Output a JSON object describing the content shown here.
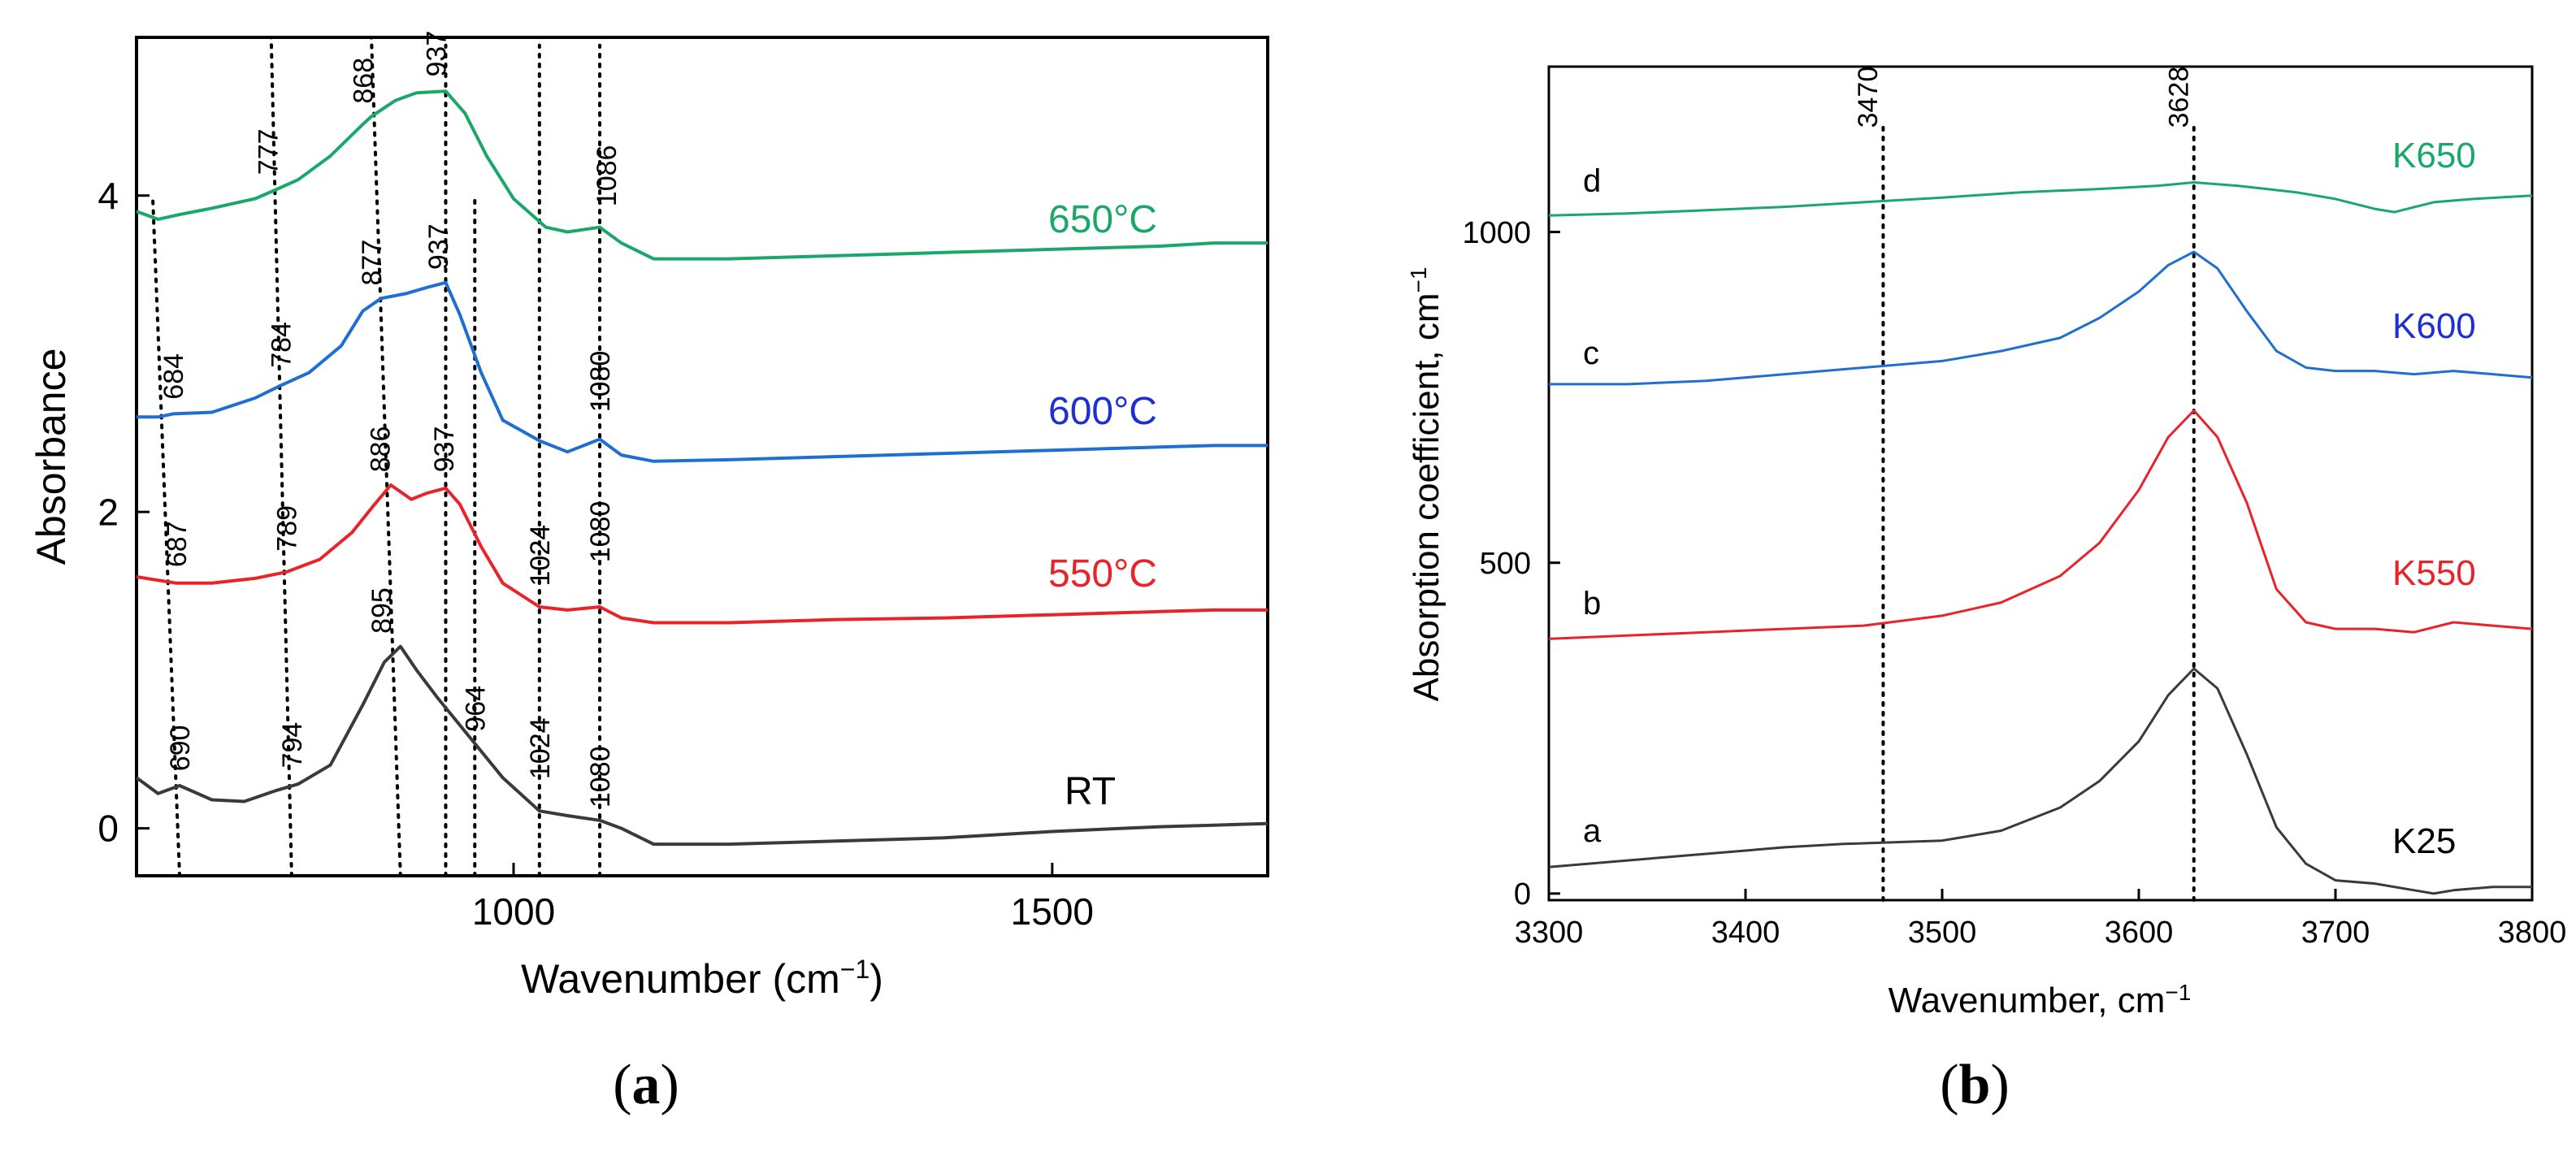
{
  "chart_data": [
    {
      "type": "line",
      "panel": "a",
      "panel_label": "a",
      "xlabel": "Wavenumber (cm",
      "xlabel_sup": "−1",
      "xlabel_close": ")",
      "ylabel": "Absorbance",
      "xlim": [
        650,
        1700
      ],
      "ylim": [
        -0.3,
        5.0
      ],
      "xticks": [
        1000,
        1500
      ],
      "yticks": [
        0,
        2,
        4
      ],
      "colors": {
        "RT": "#3a3a3a",
        "550": "#e8242a",
        "600": "#1f6fd1",
        "650": "#1aa86a"
      },
      "series": [
        {
          "name": "RT",
          "label": "RT",
          "color": "#3a3a3a",
          "x": [
            650,
            670,
            690,
            720,
            750,
            780,
            800,
            830,
            860,
            880,
            895,
            910,
            930,
            960,
            990,
            1024,
            1050,
            1080,
            1100,
            1130,
            1200,
            1300,
            1400,
            1500,
            1600,
            1650,
            1700
          ],
          "y": [
            0.32,
            0.22,
            0.27,
            0.18,
            0.17,
            0.24,
            0.28,
            0.4,
            0.78,
            1.05,
            1.15,
            1.0,
            0.82,
            0.57,
            0.32,
            0.11,
            0.08,
            0.05,
            0.0,
            -0.1,
            -0.1,
            -0.08,
            -0.06,
            -0.02,
            0.01,
            0.02,
            0.03
          ]
        },
        {
          "name": "550°C",
          "label": "550°C",
          "color": "#e8242a",
          "x": [
            650,
            687,
            720,
            760,
            789,
            820,
            850,
            870,
            886,
            905,
            920,
            937,
            950,
            970,
            990,
            1024,
            1050,
            1080,
            1100,
            1130,
            1200,
            1300,
            1400,
            1500,
            1600,
            1650,
            1700
          ],
          "y": [
            1.59,
            1.55,
            1.55,
            1.58,
            1.62,
            1.7,
            1.87,
            2.04,
            2.17,
            2.08,
            2.12,
            2.15,
            2.05,
            1.78,
            1.55,
            1.4,
            1.38,
            1.4,
            1.33,
            1.3,
            1.3,
            1.32,
            1.33,
            1.35,
            1.37,
            1.38,
            1.38
          ]
        },
        {
          "name": "600°C",
          "label": "600°C",
          "color": "#1f6fd1",
          "x": [
            650,
            670,
            684,
            720,
            760,
            784,
            810,
            840,
            860,
            877,
            900,
            920,
            937,
            950,
            970,
            990,
            1024,
            1050,
            1080,
            1100,
            1130,
            1200,
            1300,
            1400,
            1500,
            1600,
            1650,
            1700
          ],
          "y": [
            2.6,
            2.6,
            2.62,
            2.63,
            2.72,
            2.8,
            2.88,
            3.05,
            3.27,
            3.35,
            3.38,
            3.42,
            3.45,
            3.25,
            2.88,
            2.58,
            2.45,
            2.38,
            2.46,
            2.36,
            2.32,
            2.33,
            2.35,
            2.37,
            2.39,
            2.41,
            2.42,
            2.42
          ]
        },
        {
          "name": "650°C",
          "label": "650°C",
          "color": "#1aa86a",
          "x": [
            650,
            670,
            690,
            720,
            760,
            777,
            800,
            830,
            860,
            868,
            890,
            910,
            937,
            955,
            975,
            1000,
            1030,
            1050,
            1080,
            1100,
            1130,
            1200,
            1300,
            1400,
            1500,
            1600,
            1650,
            1700
          ],
          "y": [
            3.9,
            3.85,
            3.88,
            3.92,
            3.98,
            4.03,
            4.1,
            4.25,
            4.45,
            4.5,
            4.6,
            4.65,
            4.66,
            4.52,
            4.25,
            3.98,
            3.8,
            3.77,
            3.8,
            3.7,
            3.6,
            3.6,
            3.62,
            3.64,
            3.66,
            3.68,
            3.7,
            3.7
          ]
        }
      ],
      "series_labels": {
        "RT": "RT",
        "550": "550°C",
        "600": "600°C",
        "650": "650°C"
      },
      "vlines": [
        {
          "x1": 690,
          "x2": 665,
          "y1": -0.3,
          "y2": 4.0
        },
        {
          "x1": 794,
          "x2": 775,
          "y1": -0.3,
          "y2": 5.0
        },
        {
          "x1": 895,
          "x2": 868,
          "y1": -0.3,
          "y2": 5.0
        },
        {
          "x1": 937,
          "x2": 937,
          "y1": -0.3,
          "y2": 4.95
        },
        {
          "x1": 964,
          "x2": 964,
          "y1": -0.3,
          "y2": 4.0
        },
        {
          "x1": 1024,
          "x2": 1024,
          "y1": -0.3,
          "y2": 4.95
        },
        {
          "x1": 1080,
          "x2": 1080,
          "y1": -0.3,
          "y2": 4.95
        }
      ],
      "annotations": [
        {
          "text": "690",
          "x": 690,
          "y": 0.33,
          "series": "RT"
        },
        {
          "text": "794",
          "x": 794,
          "y": 0.35,
          "series": "RT"
        },
        {
          "text": "895",
          "x": 877,
          "y": 1.2,
          "series": "RT"
        },
        {
          "text": "964",
          "x": 964,
          "y": 0.58,
          "series": "RT"
        },
        {
          "text": "1024",
          "x": 1024,
          "y": 0.28,
          "series": "RT"
        },
        {
          "text": "1080",
          "x": 1080,
          "y": 0.1,
          "series": "RT"
        },
        {
          "text": "687",
          "x": 687,
          "y": 1.62,
          "series": "550"
        },
        {
          "text": "789",
          "x": 789,
          "y": 1.72,
          "series": "550"
        },
        {
          "text": "886",
          "x": 876,
          "y": 2.22,
          "series": "550"
        },
        {
          "text": "937",
          "x": 935,
          "y": 2.22,
          "series": "550"
        },
        {
          "text": "1024",
          "x": 1024,
          "y": 1.5,
          "series": "550"
        },
        {
          "text": "1080",
          "x": 1080,
          "y": 1.65,
          "series": "550"
        },
        {
          "text": "684",
          "x": 684,
          "y": 2.68,
          "series": "600"
        },
        {
          "text": "784",
          "x": 784,
          "y": 2.88,
          "series": "600"
        },
        {
          "text": "877",
          "x": 868,
          "y": 3.4,
          "series": "600"
        },
        {
          "text": "937",
          "x": 930,
          "y": 3.5,
          "series": "600"
        },
        {
          "text": "1080",
          "x": 1080,
          "y": 2.6,
          "series": "600"
        },
        {
          "text": "777",
          "x": 772,
          "y": 4.1,
          "series": "650"
        },
        {
          "text": "868",
          "x": 860,
          "y": 4.55,
          "series": "650"
        },
        {
          "text": "937",
          "x": 928,
          "y": 4.72,
          "series": "650"
        },
        {
          "text": "1086",
          "x": 1086,
          "y": 3.9,
          "series": "650"
        }
      ]
    },
    {
      "type": "line",
      "panel": "b",
      "panel_label": "b",
      "xlabel": "Wavenumber, cm",
      "xlabel_sup": "−1",
      "ylabel": "Absorption coefficient, cm",
      "ylabel_sup": "−1",
      "xlim": [
        3300,
        3800
      ],
      "ylim": [
        -10,
        1250
      ],
      "xticks": [
        3300,
        3400,
        3500,
        3600,
        3700,
        3800
      ],
      "yticks": [
        0,
        500,
        1000
      ],
      "series": [
        {
          "name": "K25",
          "label": "K25",
          "letter": "a",
          "color": "#3a3a3a",
          "x": [
            3300,
            3340,
            3380,
            3420,
            3450,
            3500,
            3530,
            3560,
            3580,
            3600,
            3615,
            3628,
            3640,
            3655,
            3670,
            3685,
            3700,
            3720,
            3740,
            3750,
            3760,
            3780,
            3800
          ],
          "y": [
            40,
            50,
            60,
            70,
            75,
            80,
            95,
            130,
            170,
            230,
            300,
            340,
            310,
            210,
            100,
            45,
            20,
            15,
            5,
            0,
            5,
            10,
            10
          ]
        },
        {
          "name": "K550",
          "label": "K550",
          "letter": "b",
          "color": "#e8242a",
          "x": [
            3300,
            3340,
            3380,
            3420,
            3460,
            3500,
            3530,
            3560,
            3580,
            3600,
            3615,
            3628,
            3640,
            3655,
            3670,
            3685,
            3700,
            3720,
            3740,
            3760,
            3780,
            3800
          ],
          "y": [
            385,
            390,
            395,
            400,
            405,
            420,
            440,
            480,
            530,
            610,
            690,
            730,
            690,
            590,
            460,
            410,
            400,
            400,
            395,
            410,
            405,
            400
          ]
        },
        {
          "name": "K600",
          "label": "K600",
          "letter": "c",
          "color": "#1f6fd1",
          "x": [
            3300,
            3340,
            3380,
            3420,
            3460,
            3500,
            3530,
            3560,
            3580,
            3600,
            3615,
            3628,
            3640,
            3655,
            3670,
            3685,
            3700,
            3720,
            3740,
            3760,
            3780,
            3800
          ],
          "y": [
            770,
            770,
            775,
            785,
            795,
            805,
            820,
            840,
            870,
            910,
            950,
            970,
            945,
            880,
            820,
            795,
            790,
            790,
            785,
            790,
            785,
            780
          ]
        },
        {
          "name": "K650",
          "label": "K650",
          "letter": "d",
          "color": "#1aa86a",
          "x": [
            3300,
            3340,
            3380,
            3420,
            3460,
            3500,
            3540,
            3580,
            3610,
            3628,
            3650,
            3680,
            3700,
            3720,
            3730,
            3750,
            3770,
            3800
          ],
          "y": [
            1025,
            1028,
            1033,
            1038,
            1045,
            1052,
            1060,
            1065,
            1070,
            1075,
            1070,
            1060,
            1050,
            1035,
            1030,
            1045,
            1050,
            1055
          ]
        }
      ],
      "vlines": [
        {
          "x1": 3470,
          "x2": 3470,
          "y1": -10,
          "y2": 1165
        },
        {
          "x1": 3628,
          "x2": 3628,
          "y1": -10,
          "y2": 1165
        }
      ],
      "annotations": [
        {
          "text": "3470",
          "x": 3462,
          "y": 1150
        },
        {
          "text": "3628",
          "x": 3620,
          "y": 1150
        }
      ]
    }
  ]
}
